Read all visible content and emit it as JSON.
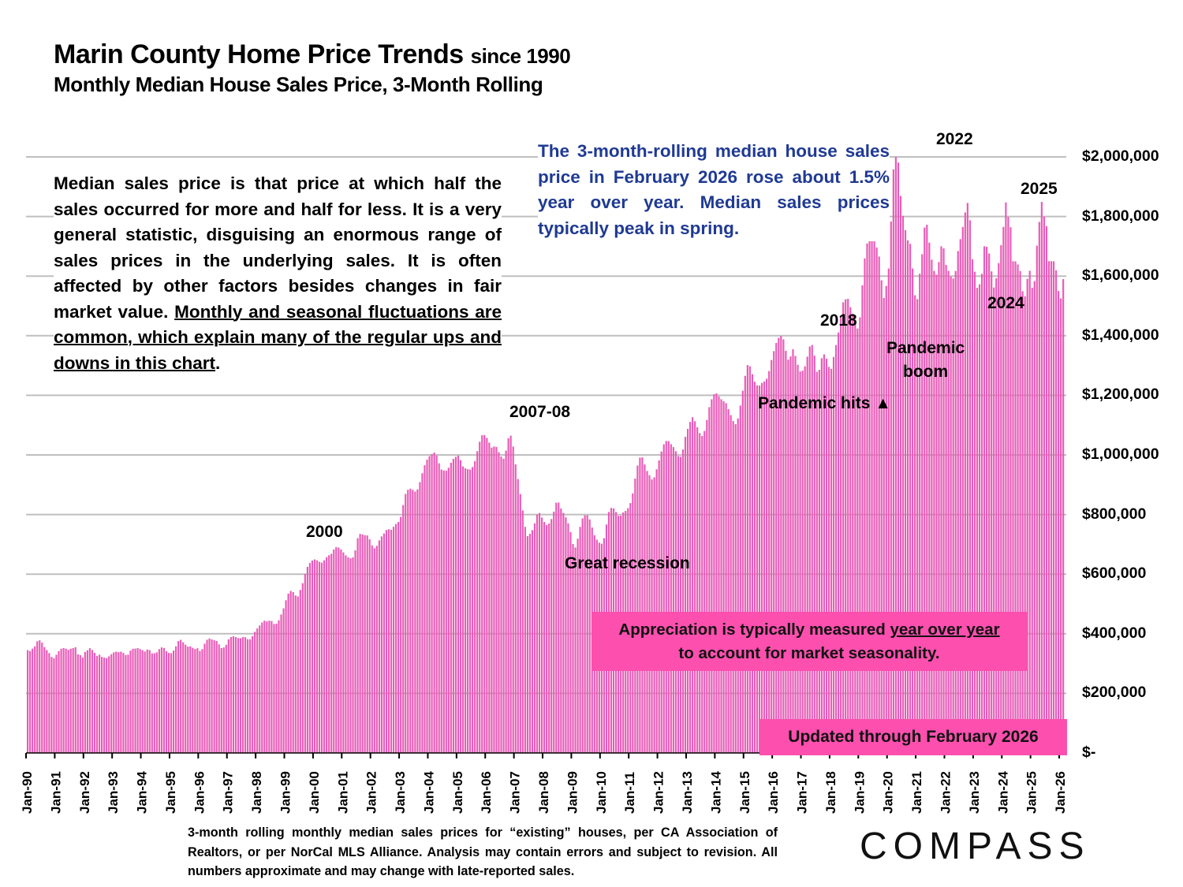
{
  "header": {
    "title": "Marin County Home Price Trends",
    "title_suffix": "since 1990",
    "subtitle": "Monthly Median House Sales Price, 3-Month Rolling"
  },
  "notes": {
    "left_plain": "Median sales price is that price at which half the sales occurred for more and half for less. It is a very general statistic, disguising an enormous range of sales prices in the underlying sales. It is often affected by other factors besides changes in fair market value. ",
    "left_underlined": "Monthly and seasonal fluctuations are common, which explain many of the regular ups and downs in this chart",
    "left_end": ".",
    "blue": "The 3-month-rolling median house sales price in February 2026 rose about 1.5% year over year. Median sales prices typically peak in spring.",
    "appreciation_plain": "Appreciation is typically measured ",
    "appreciation_underlined": "year over year",
    "appreciation_end": "to account for market seasonality.",
    "updated": "Updated through February 2026"
  },
  "footer": {
    "source": "3-month rolling monthly median sales prices for “existing” houses, per CA Association of Realtors, or per NorCal MLS Alliance. Analysis may contain errors and subject to revision. All numbers approximate and may change with late-reported sales.",
    "logo": "COMPASS"
  },
  "colors": {
    "bar": "#e85cb8",
    "pink_box": "#fc4fae",
    "blue_text": "#1f3a93",
    "grid": "#bfbfbf"
  },
  "chart_data": {
    "type": "bar",
    "title": "Marin County Home Price Trends since 1990",
    "subtitle": "Monthly Median House Sales Price, 3-Month Rolling",
    "xlabel": "",
    "ylabel": "",
    "ylim": [
      0,
      2000000
    ],
    "y_ticks": [
      "$-",
      "$200,000",
      "$400,000",
      "$600,000",
      "$800,000",
      "$1,000,000",
      "$1,200,000",
      "$1,400,000",
      "$1,600,000",
      "$1,800,000",
      "$2,000,000"
    ],
    "y_tick_values": [
      0,
      200000,
      400000,
      600000,
      800000,
      1000000,
      1200000,
      1400000,
      1600000,
      1800000,
      2000000
    ],
    "x_ticks": [
      "Jan-90",
      "Jan-91",
      "Jan-92",
      "Jan-93",
      "Jan-94",
      "Jan-95",
      "Jan-96",
      "Jan-97",
      "Jan-98",
      "Jan-99",
      "Jan-00",
      "Jan-01",
      "Jan-02",
      "Jan-03",
      "Jan-04",
      "Jan-05",
      "Jan-06",
      "Jan-07",
      "Jan-08",
      "Jan-09",
      "Jan-10",
      "Jan-11",
      "Jan-12",
      "Jan-13",
      "Jan-14",
      "Jan-15",
      "Jan-16",
      "Jan-17",
      "Jan-18",
      "Jan-19",
      "Jan-20",
      "Jan-21",
      "Jan-22",
      "Jan-23",
      "Jan-24",
      "Jan-25",
      "Jan-26"
    ],
    "grid": true,
    "y_axis_side": "right",
    "start": "Jan-1990",
    "end": "Feb-2026",
    "annotations": [
      {
        "text": "2000",
        "at": "Jan-2000"
      },
      {
        "text": "2007-08",
        "at": "Jul-2007"
      },
      {
        "text": "Great recession",
        "at": "2010"
      },
      {
        "text": "2018",
        "at": "Jun-2018"
      },
      {
        "text": "Pandemic hits ▲",
        "at": "Mar-2020"
      },
      {
        "text": "Pandemic boom",
        "at": "2021"
      },
      {
        "text": "2022",
        "at": "Apr-2022"
      },
      {
        "text": "2024",
        "at": "Apr-2024"
      },
      {
        "text": "2025",
        "at": "Apr-2025"
      }
    ],
    "yearly_values": {
      "1990": [
        345000,
        342000,
        350000,
        358000,
        375000,
        378000,
        370000,
        355000,
        345000,
        335000,
        322000,
        318000
      ],
      "1991": [
        330000,
        342000,
        350000,
        352000,
        350000,
        346000,
        350000,
        352000,
        355000,
        330000,
        328000,
        320000
      ],
      "1992": [
        340000,
        345000,
        352000,
        345000,
        335000,
        325000,
        330000,
        322000,
        320000,
        318000,
        325000,
        332000
      ],
      "1993": [
        338000,
        340000,
        338000,
        340000,
        335000,
        328000,
        330000,
        345000,
        350000,
        350000,
        352000,
        348000
      ],
      "1994": [
        345000,
        340000,
        348000,
        345000,
        333000,
        335000,
        338000,
        350000,
        355000,
        352000,
        340000,
        335000
      ],
      "1995": [
        335000,
        345000,
        360000,
        378000,
        380000,
        370000,
        362000,
        356000,
        358000,
        352000,
        348000,
        352000
      ],
      "1996": [
        340000,
        350000,
        370000,
        382000,
        385000,
        380000,
        378000,
        375000,
        362000,
        350000,
        355000,
        365000
      ],
      "1997": [
        385000,
        390000,
        392000,
        388000,
        385000,
        385000,
        390000,
        388000,
        380000,
        382000,
        395000,
        410000
      ],
      "1998": [
        420000,
        430000,
        440000,
        445000,
        440000,
        445000,
        442000,
        430000,
        435000,
        448000,
        470000,
        490000
      ],
      "1999": [
        520000,
        540000,
        545000,
        538000,
        525000,
        525000,
        555000,
        575000,
        610000,
        630000,
        640000,
        648000
      ],
      "2000": [
        650000,
        645000,
        640000,
        638000,
        650000,
        660000,
        665000,
        670000,
        688000,
        692000,
        688000,
        680000
      ],
      "2001": [
        670000,
        660000,
        655000,
        652000,
        658000,
        690000,
        735000,
        735000,
        732000,
        730000,
        730000,
        710000
      ],
      "2002": [
        690000,
        685000,
        700000,
        720000,
        730000,
        740000,
        752000,
        750000,
        748000,
        765000,
        770000,
        778000
      ],
      "2003": [
        800000,
        850000,
        880000,
        885000,
        888000,
        880000,
        875000,
        890000,
        920000,
        950000,
        975000,
        990000
      ],
      "2004": [
        1000000,
        1005000,
        1010000,
        990000,
        960000,
        945000,
        950000,
        945000,
        965000,
        980000,
        992000,
        995000
      ],
      "2005": [
        1000000,
        970000,
        955000,
        955000,
        950000,
        952000,
        965000,
        990000,
        1030000,
        1055000,
        1075000,
        1060000
      ],
      "2006": [
        1055000,
        1030000,
        1020000,
        1035000,
        1020000,
        1000000,
        990000,
        985000,
        1040000,
        1070000,
        1060000,
        1000000
      ],
      "2007": [
        940000,
        900000,
        840000,
        790000,
        730000,
        725000,
        745000,
        750000,
        790000,
        810000,
        800000,
        780000
      ],
      "2008": [
        770000,
        760000,
        780000,
        790000,
        830000,
        850000,
        830000,
        810000,
        800000,
        780000,
        760000,
        720000
      ],
      "2009": [
        680000,
        700000,
        740000,
        780000,
        795000,
        800000,
        795000,
        770000,
        740000,
        720000,
        710000,
        700000
      ],
      "2010": [
        705000,
        740000,
        800000,
        820000,
        825000,
        815000,
        800000,
        790000,
        805000,
        810000,
        815000,
        830000
      ],
      "2011": [
        850000,
        900000,
        950000,
        985000,
        1000000,
        980000,
        950000,
        940000,
        920000,
        915000,
        940000,
        970000
      ],
      "2012": [
        1000000,
        1030000,
        1045000,
        1050000,
        1040000,
        1030000,
        1020000,
        1000000,
        990000,
        1000000,
        1050000,
        1080000
      ],
      "2013": [
        1100000,
        1130000,
        1120000,
        1100000,
        1080000,
        1060000,
        1070000,
        1100000,
        1150000,
        1180000,
        1200000,
        1210000
      ],
      "2014": [
        1200000,
        1190000,
        1180000,
        1180000,
        1160000,
        1140000,
        1120000,
        1100000,
        1110000,
        1150000,
        1200000,
        1250000
      ],
      "2015": [
        1300000,
        1305000,
        1280000,
        1250000,
        1235000,
        1230000,
        1240000,
        1245000,
        1250000,
        1270000,
        1310000,
        1340000
      ],
      "2016": [
        1370000,
        1390000,
        1400000,
        1398000,
        1360000,
        1320000,
        1320000,
        1360000,
        1340000,
        1310000,
        1280000,
        1280000
      ],
      "2017": [
        1290000,
        1320000,
        1360000,
        1375000,
        1350000,
        1280000,
        1275000,
        1320000,
        1340000,
        1330000,
        1300000,
        1280000
      ],
      "2018": [
        1320000,
        1360000,
        1400000,
        1450000,
        1510000,
        1520000,
        1530000,
        1500000,
        1480000,
        1450000,
        1420000,
        1440000
      ],
      "2019": [
        1550000,
        1650000,
        1700000,
        1750000,
        1760000,
        1740000,
        1700000,
        1680000,
        1600000,
        1520000,
        1560000,
        1600000
      ],
      "2020": [
        1750000,
        1950000,
        2000000,
        2000000,
        1880000,
        1810000,
        1760000,
        1720000,
        1720000,
        1640000,
        1540000,
        1510000
      ],
      "2021": [
        1600000,
        1660000,
        1760000,
        1780000,
        1720000,
        1660000,
        1620000,
        1600000,
        1640000,
        1700000,
        1700000,
        1640000
      ],
      "2022": [
        1620000,
        1600000,
        1590000,
        1610000,
        1680000,
        1720000,
        1760000,
        1810000,
        1850000,
        1800000,
        1660000,
        1620000
      ],
      "2023": [
        1560000,
        1570000,
        1600000,
        1700000,
        1700000,
        1680000,
        1620000,
        1560000,
        1590000,
        1640000,
        1700000,
        1760000
      ],
      "2024": [
        1850000,
        1800000,
        1770000,
        1650000,
        1650000,
        1640000,
        1620000,
        1550000,
        1530000,
        1590000
      ],
      "_note": "values approximated visually from bar heights; see monthly_values for full series"
    }
  }
}
